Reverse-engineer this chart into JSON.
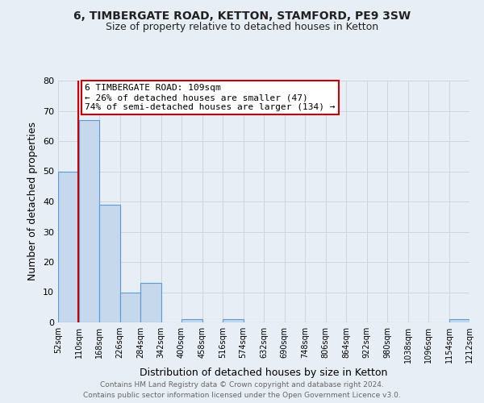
{
  "title": "6, TIMBERGATE ROAD, KETTON, STAMFORD, PE9 3SW",
  "subtitle": "Size of property relative to detached houses in Ketton",
  "xlabel": "Distribution of detached houses by size in Ketton",
  "ylabel": "Number of detached properties",
  "bin_edges": [
    52,
    110,
    168,
    226,
    284,
    342,
    400,
    458,
    516,
    574,
    632,
    690,
    748,
    806,
    864,
    922,
    980,
    1038,
    1096,
    1154,
    1212
  ],
  "bar_heights": [
    50,
    67,
    39,
    10,
    13,
    0,
    1,
    0,
    1,
    0,
    0,
    0,
    0,
    0,
    0,
    0,
    0,
    0,
    0,
    1
  ],
  "bar_color": "#c5d8ec",
  "bar_edge_color": "#5b9bd5",
  "ylim": [
    0,
    80
  ],
  "yticks": [
    0,
    10,
    20,
    30,
    40,
    50,
    60,
    70,
    80
  ],
  "red_line_x": 109,
  "annotation_title": "6 TIMBERGATE ROAD: 109sqm",
  "annotation_line1": "← 26% of detached houses are smaller (47)",
  "annotation_line2": "74% of semi-detached houses are larger (134) →",
  "annotation_box_color": "#ffffff",
  "annotation_box_edge_color": "#cc0000",
  "red_line_color": "#cc0000",
  "grid_color": "#ccd6e0",
  "background_color": "#e8eef5",
  "footer_line1": "Contains HM Land Registry data © Crown copyright and database right 2024.",
  "footer_line2": "Contains public sector information licensed under the Open Government Licence v3.0.",
  "tick_labels": [
    "52sqm",
    "110sqm",
    "168sqm",
    "226sqm",
    "284sqm",
    "342sqm",
    "400sqm",
    "458sqm",
    "516sqm",
    "574sqm",
    "632sqm",
    "690sqm",
    "748sqm",
    "806sqm",
    "864sqm",
    "922sqm",
    "980sqm",
    "1038sqm",
    "1096sqm",
    "1154sqm",
    "1212sqm"
  ]
}
